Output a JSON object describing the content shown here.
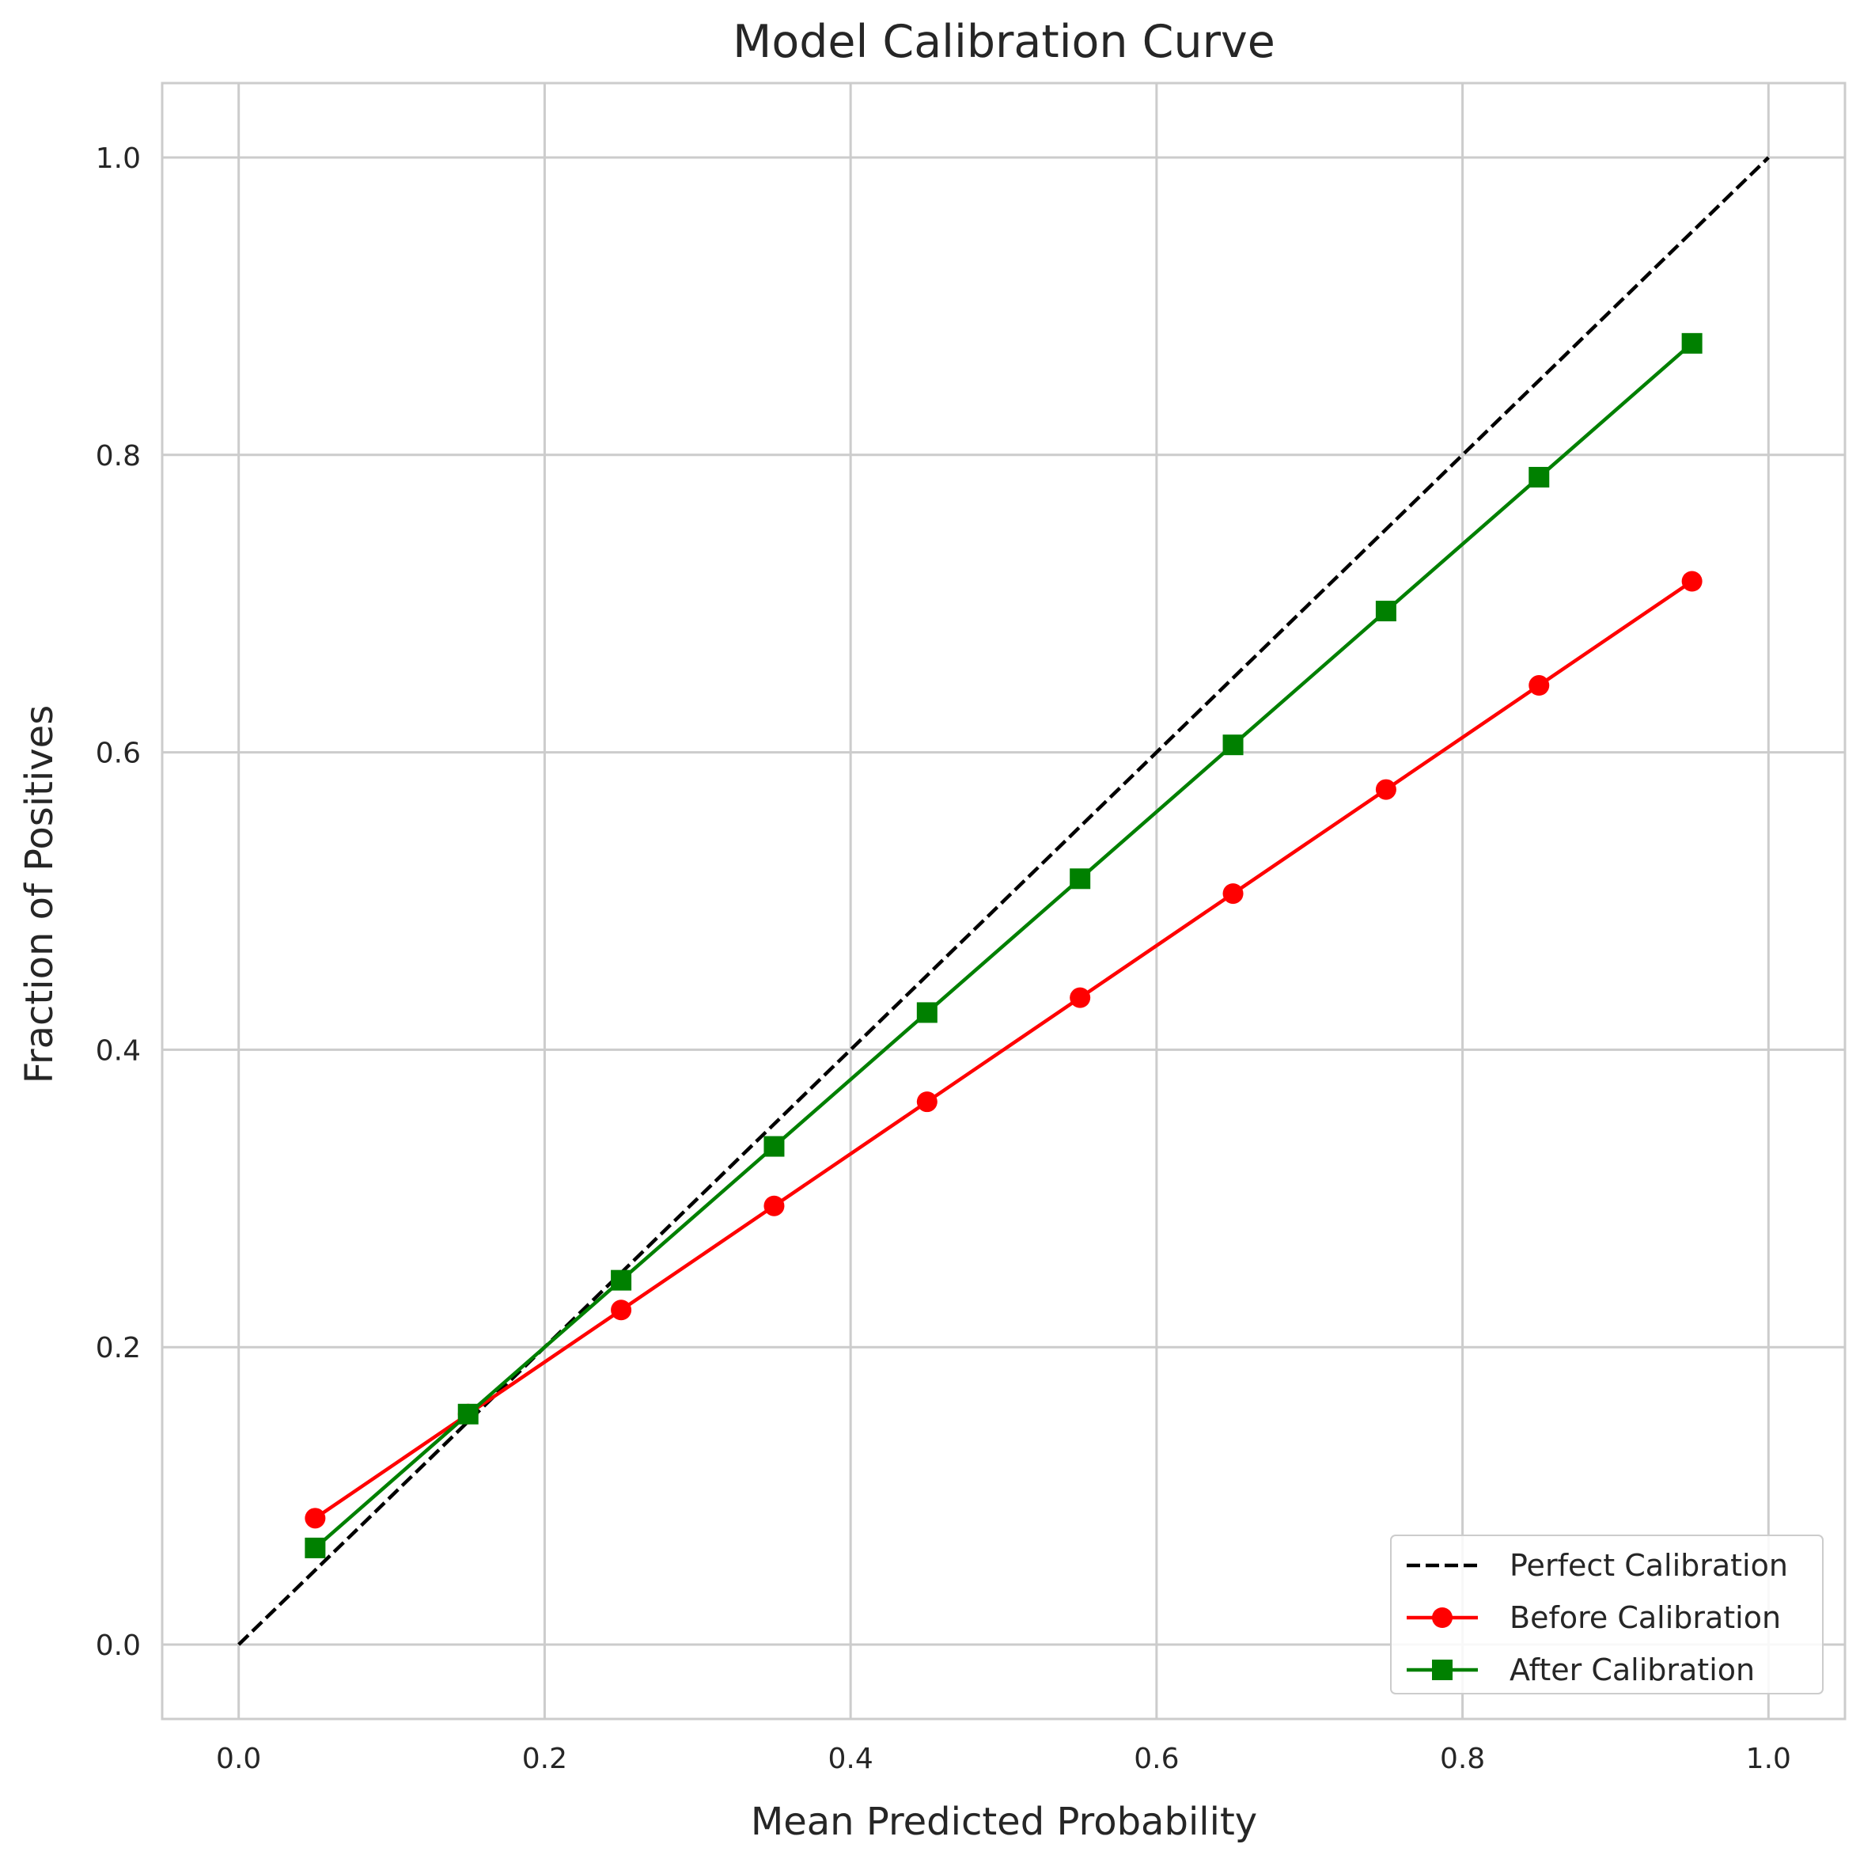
{
  "chart_data": {
    "type": "line",
    "title": "Model Calibration Curve",
    "xlabel": "Mean Predicted Probability",
    "ylabel": "Fraction of Positives",
    "xlim": [
      -0.05,
      1.05
    ],
    "ylim": [
      -0.05,
      1.05
    ],
    "xticks": [
      0.0,
      0.2,
      0.4,
      0.6,
      0.8,
      1.0
    ],
    "yticks": [
      0.0,
      0.2,
      0.4,
      0.6,
      0.8,
      1.0
    ],
    "xtick_labels": [
      "0.0",
      "0.2",
      "0.4",
      "0.6",
      "0.8",
      "1.0"
    ],
    "ytick_labels": [
      "0.0",
      "0.2",
      "0.4",
      "0.6",
      "0.8",
      "1.0"
    ],
    "grid": true,
    "legend_position": "bottom-right",
    "series": [
      {
        "name": "Perfect Calibration",
        "color": "#000000",
        "line_style": "dashed",
        "marker": "none",
        "x": [
          0.0,
          1.0
        ],
        "y": [
          0.0,
          1.0
        ]
      },
      {
        "name": "Before Calibration",
        "color": "#ff0000",
        "line_style": "solid",
        "marker": "circle",
        "x": [
          0.05,
          0.15,
          0.25,
          0.35,
          0.45,
          0.55,
          0.65,
          0.75,
          0.85,
          0.95
        ],
        "y": [
          0.085,
          0.155,
          0.225,
          0.295,
          0.365,
          0.435,
          0.505,
          0.575,
          0.645,
          0.715
        ]
      },
      {
        "name": "After Calibration",
        "color": "#008000",
        "line_style": "solid",
        "marker": "square",
        "x": [
          0.05,
          0.15,
          0.25,
          0.35,
          0.45,
          0.55,
          0.65,
          0.75,
          0.85,
          0.95
        ],
        "y": [
          0.065,
          0.155,
          0.245,
          0.335,
          0.425,
          0.515,
          0.605,
          0.695,
          0.785,
          0.875
        ]
      }
    ]
  }
}
